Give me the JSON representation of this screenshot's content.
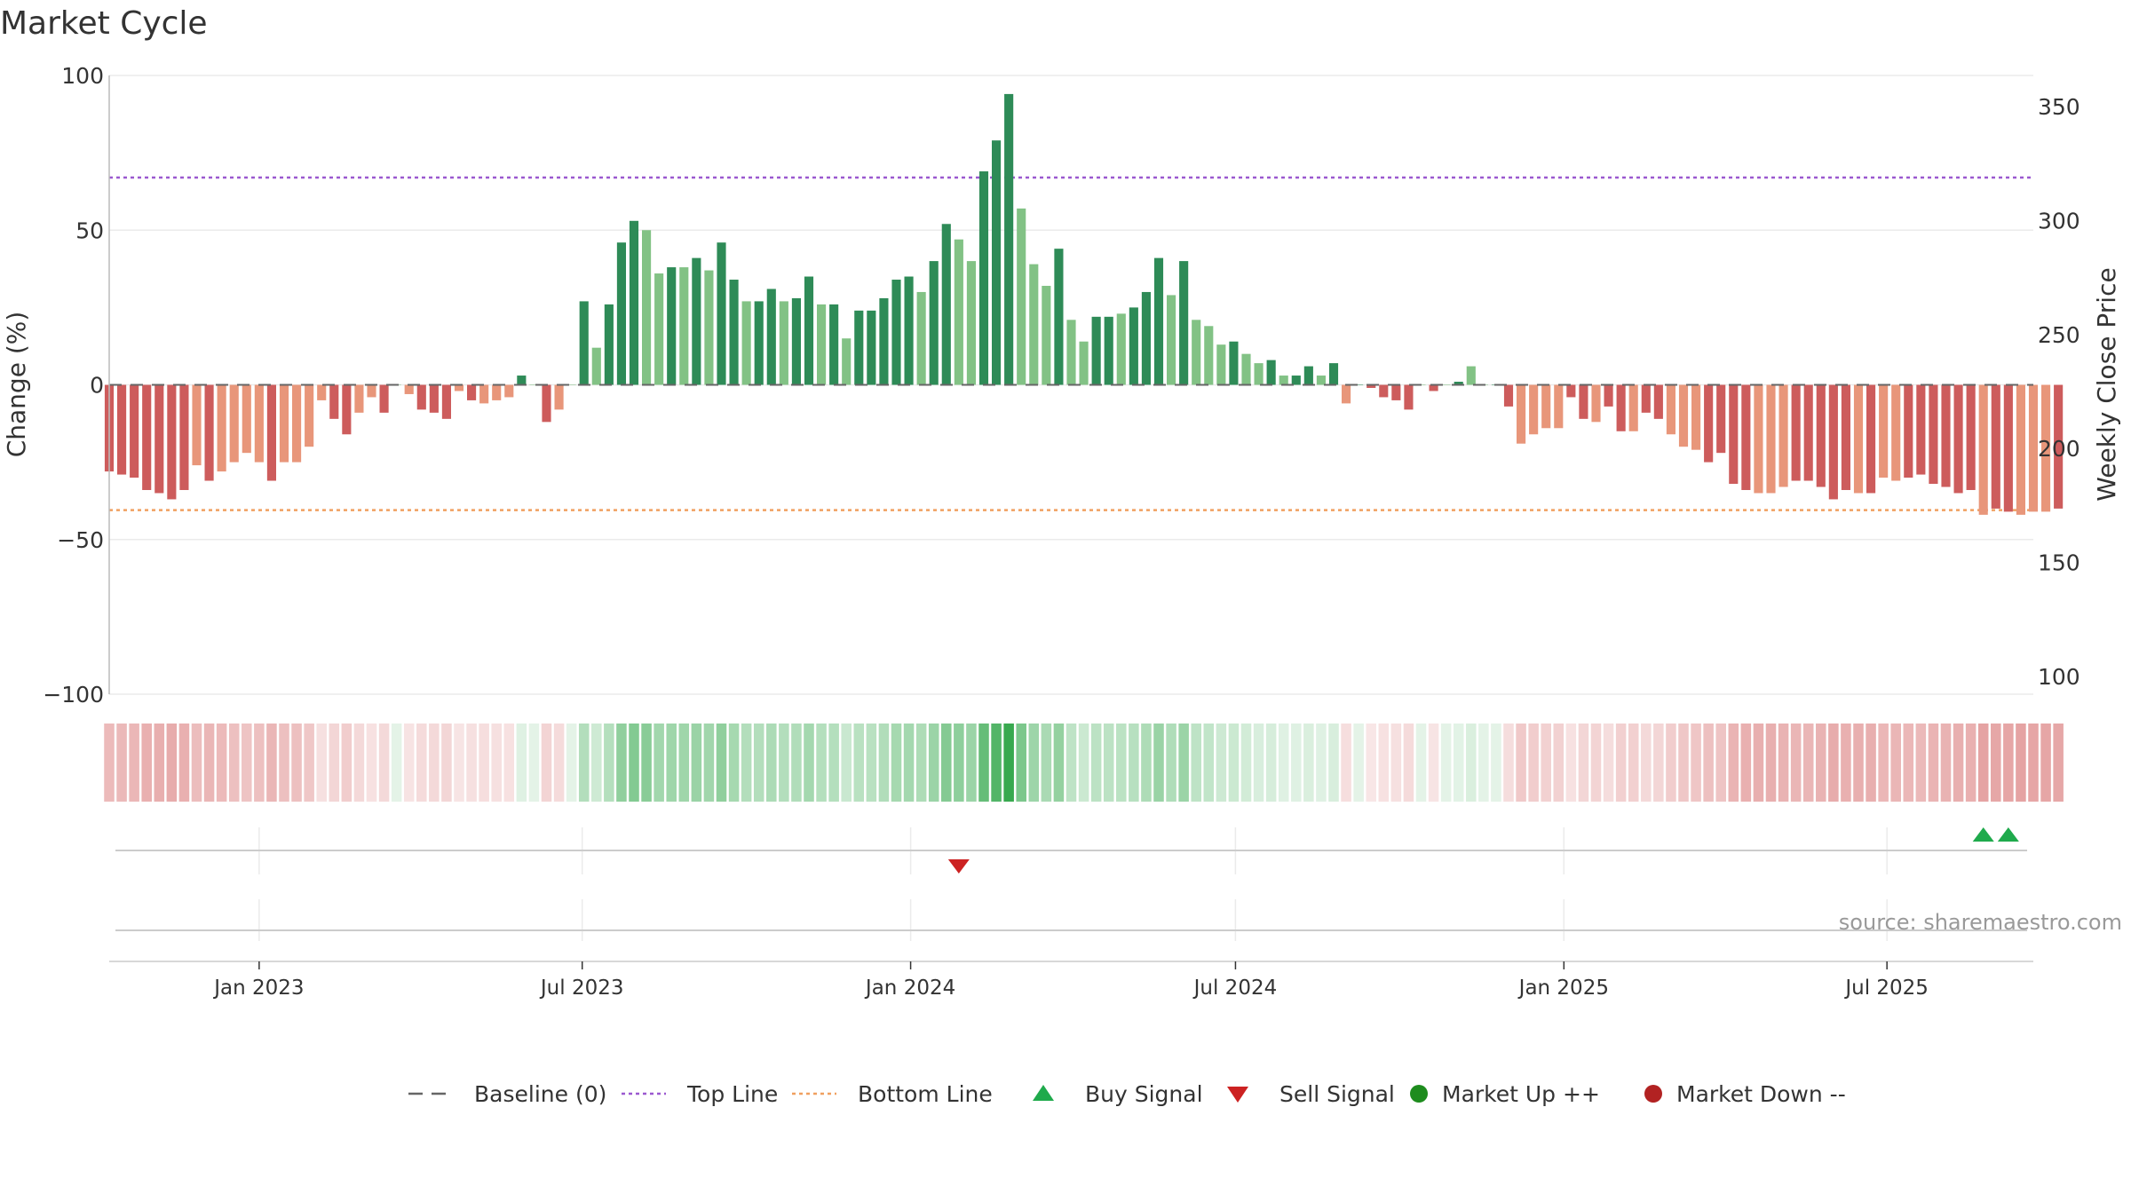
{
  "chart_data": {
    "type": "bar",
    "title": "Market Cycle",
    "ylabel": "Change (%)",
    "y2label": "Weekly Close Price",
    "ylim": [
      -100,
      100
    ],
    "y2lim": [
      100,
      350
    ],
    "yticks": [
      100,
      50,
      0,
      -50,
      -100
    ],
    "yticklabels": [
      "100",
      "50",
      "0",
      "−50",
      "−100"
    ],
    "y2ticks": [
      350,
      300,
      250,
      200,
      150,
      100
    ],
    "y2ticklabels": [
      "350",
      "300",
      "250",
      "200",
      "150",
      "100"
    ],
    "xlim": [
      "2022-10-09",
      "2025-09-21"
    ],
    "x_tick_labels": [
      "Jan 2023",
      "Jul 2023",
      "Jan 2024",
      "Jul 2024",
      "Jan 2025",
      "Jul 2025"
    ],
    "x_tick_dates": [
      "2023-01-01",
      "2023-07-01",
      "2024-01-01",
      "2024-07-01",
      "2025-01-01",
      "2025-07-01"
    ],
    "start_week": "2022-10-09",
    "interval_days": 7,
    "values": [
      -28,
      -29,
      -30,
      -34,
      -35,
      -37,
      -34,
      -26,
      -31,
      -28,
      -25,
      -22,
      -25,
      -31,
      -25,
      -25,
      -20,
      -5,
      -11,
      -16,
      -9,
      -4,
      -9,
      0,
      -3,
      -8,
      -9,
      -11,
      -2,
      -5,
      -6,
      -5,
      -4,
      3,
      0,
      -12,
      -8,
      0,
      27,
      12,
      26,
      46,
      53,
      50,
      36,
      38,
      38,
      41,
      37,
      46,
      34,
      27,
      27,
      31,
      27,
      28,
      35,
      26,
      26,
      15,
      24,
      24,
      28,
      34,
      35,
      30,
      40,
      52,
      47,
      40,
      69,
      79,
      94,
      57,
      39,
      32,
      44,
      21,
      14,
      22,
      22,
      23,
      25,
      30,
      41,
      29,
      40,
      21,
      19,
      13,
      14,
      10,
      7,
      8,
      3,
      3,
      6,
      3,
      7,
      -6,
      0,
      -1,
      -4,
      -5,
      -8,
      0,
      -2,
      0,
      1,
      6,
      0,
      0,
      -7,
      -19,
      -16,
      -14,
      -14,
      -4,
      -11,
      -12,
      -7,
      -15,
      -15,
      -9,
      -11,
      -16,
      -20,
      -21,
      -25,
      -22,
      -32,
      -34,
      -35,
      -35,
      -33,
      -31,
      -31,
      -33,
      -37,
      -34,
      -35,
      -35,
      -30,
      -31,
      -30,
      -29,
      -32,
      -33,
      -35,
      -34,
      -42,
      -40,
      -41,
      -42,
      -41,
      -41,
      -40
    ],
    "bar_shade": [
      "dark",
      "dark",
      "dark",
      "dark",
      "dark",
      "dark",
      "dark",
      "light",
      "dark",
      "light",
      "light",
      "light",
      "light",
      "dark",
      "light",
      "light",
      "light",
      "light",
      "dark",
      "dark",
      "light",
      "light",
      "dark",
      "light",
      "light",
      "dark",
      "dark",
      "dark",
      "light",
      "dark",
      "light",
      "light",
      "light",
      "dark",
      "light",
      "dark",
      "light",
      "light",
      "dark",
      "light",
      "dark",
      "dark",
      "dark",
      "light",
      "light",
      "dark",
      "light",
      "dark",
      "light",
      "dark",
      "dark",
      "light",
      "dark",
      "dark",
      "light",
      "dark",
      "dark",
      "light",
      "dark",
      "light",
      "dark",
      "dark",
      "dark",
      "dark",
      "dark",
      "light",
      "dark",
      "dark",
      "light",
      "light",
      "dark",
      "dark",
      "dark",
      "light",
      "light",
      "light",
      "dark",
      "light",
      "light",
      "dark",
      "dark",
      "light",
      "dark",
      "dark",
      "dark",
      "light",
      "dark",
      "light",
      "light",
      "light",
      "dark",
      "light",
      "light",
      "dark",
      "light",
      "dark",
      "dark",
      "light",
      "dark",
      "light",
      "dark",
      "dark",
      "dark",
      "dark",
      "dark",
      "light",
      "dark",
      "light",
      "dark",
      "light",
      "light",
      "dark",
      "dark",
      "light",
      "light",
      "light",
      "light",
      "dark",
      "dark",
      "light",
      "dark",
      "dark",
      "light",
      "dark",
      "dark",
      "light",
      "light",
      "light",
      "dark",
      "dark",
      "dark",
      "dark",
      "light",
      "light",
      "light",
      "dark",
      "dark",
      "dark",
      "dark",
      "dark",
      "light",
      "dark",
      "light",
      "light",
      "dark",
      "dark",
      "dark",
      "dark",
      "dark",
      "dark",
      "light",
      "dark",
      "dark",
      "light",
      "light",
      "light"
    ],
    "reference_lines": [
      {
        "name": "Top Line",
        "y": 67,
        "color": "#9b59d0",
        "style": "dotted"
      },
      {
        "name": "Bottom Line",
        "y": -40.5,
        "color": "#f0a060",
        "style": "dotted"
      },
      {
        "name": "Baseline (0)",
        "y": 0,
        "color": "#666666",
        "style": "dashed"
      }
    ],
    "signals": [
      {
        "type": "sell",
        "date": "2024-01-28"
      },
      {
        "type": "buy",
        "date": "2025-08-24"
      },
      {
        "type": "buy",
        "date": "2025-09-07"
      }
    ],
    "colors": {
      "pos_dark": "#2e8b57",
      "pos_light": "#82c285",
      "neg_dark": "#cd5c5c",
      "neg_light": "#e8967a",
      "buy": "#1faa4c",
      "sell": "#cc2222",
      "heat_pos": "#22a03c",
      "heat_neg": "#c83c3c"
    },
    "legend": [
      {
        "label": "Baseline (0)",
        "marker": "dash",
        "color": "#666666"
      },
      {
        "label": "Top Line",
        "marker": "dotted",
        "color": "#9b59d0"
      },
      {
        "label": "Bottom Line",
        "marker": "dotted",
        "color": "#f0a060"
      },
      {
        "label": "Buy Signal",
        "marker": "triangle-up",
        "color": "#1faa4c"
      },
      {
        "label": "Sell Signal",
        "marker": "triangle-down",
        "color": "#cc2222"
      },
      {
        "label": "Market Up ++",
        "marker": "circle",
        "color": "#1e8c1e"
      },
      {
        "label": "Market Down --",
        "marker": "circle",
        "color": "#b22222"
      }
    ],
    "legend_position": "bottom",
    "grid": true
  },
  "source_text": "source: sharemaestro.com"
}
